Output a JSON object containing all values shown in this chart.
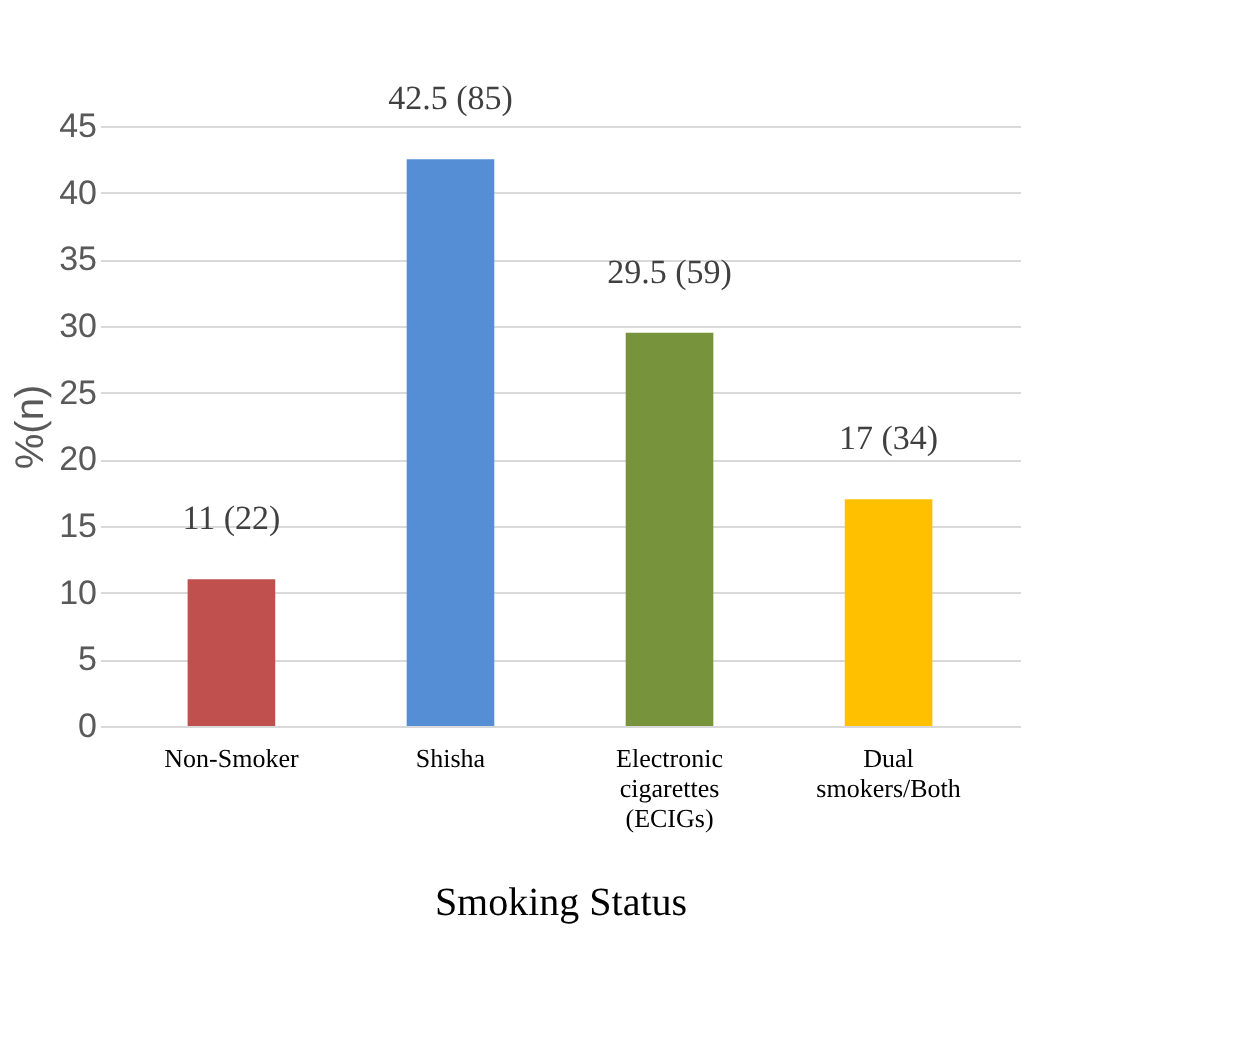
{
  "chart_data": {
    "type": "bar",
    "xlabel": "Smoking Status",
    "ylabel": "%(n)",
    "categories": [
      "Non-Smoker",
      "Shisha",
      "Electronic cigarettes (ECIGs)",
      "Dual smokers/Both"
    ],
    "values": [
      11,
      42.5,
      29.5,
      17
    ],
    "colors": [
      "#c0504d",
      "#558ed5",
      "#77933c",
      "#ffc000"
    ],
    "value_labels": [
      "11 (22)",
      "42.5 (85)",
      "29.5 (59)",
      "17 (34)"
    ],
    "ylim": [
      0,
      45
    ],
    "yticks": [
      0,
      5,
      10,
      15,
      20,
      25,
      30,
      35,
      40,
      45
    ],
    "grid": "y"
  }
}
